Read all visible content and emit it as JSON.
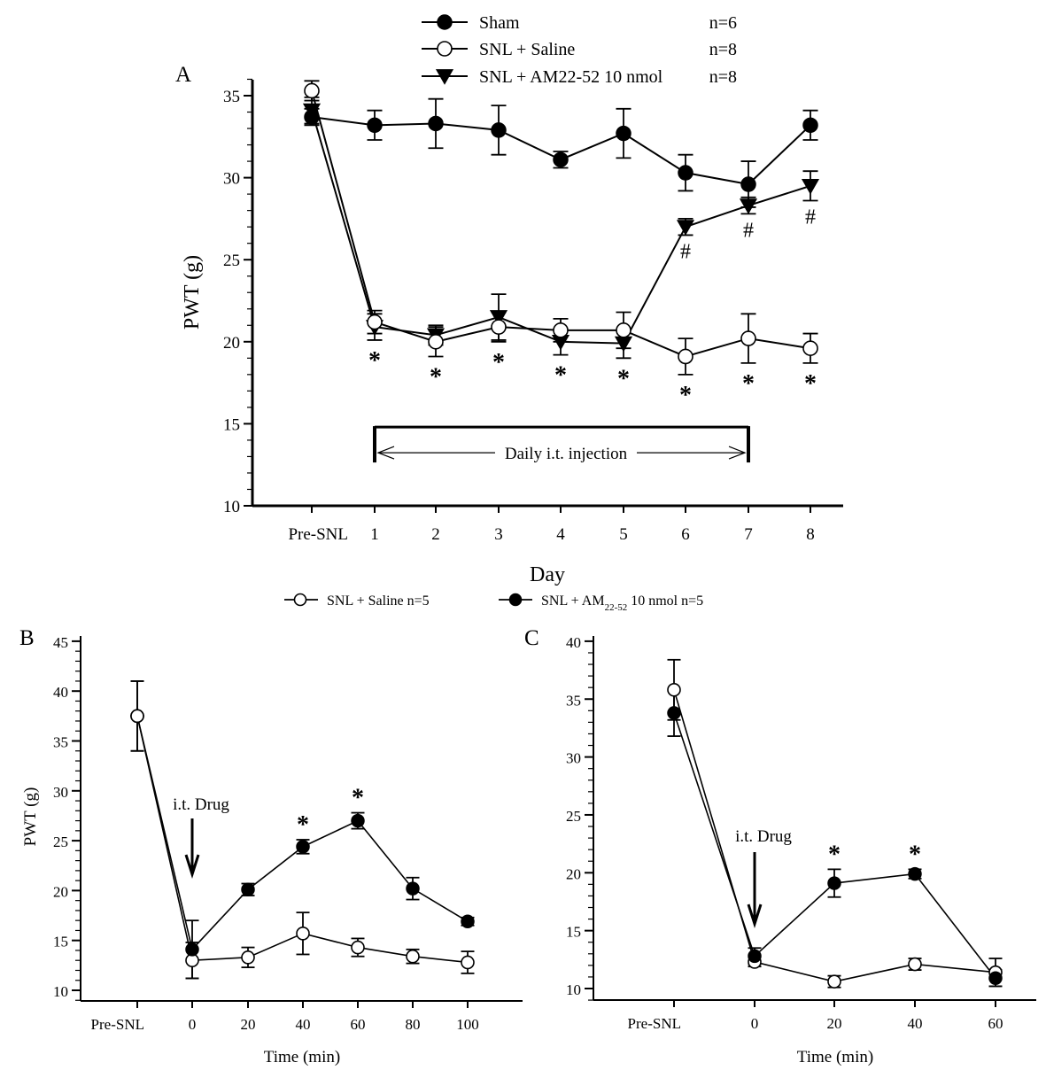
{
  "chart_data": [
    {
      "id": "A",
      "panel_label": "A",
      "type": "line",
      "xlabel": "Day",
      "ylabel": "PWT (g)",
      "ylim": [
        10,
        36
      ],
      "yticks": [
        10,
        15,
        20,
        25,
        30,
        35
      ],
      "categories": [
        "Pre-SNL",
        "1",
        "2",
        "3",
        "4",
        "5",
        "6",
        "7",
        "8"
      ],
      "legend_position": "top-center",
      "series": [
        {
          "name": "Sham",
          "n": "n=6",
          "marker": "filled-circle",
          "values": [
            33.7,
            33.2,
            33.3,
            32.9,
            31.1,
            32.7,
            30.3,
            29.6,
            33.2
          ],
          "errors": [
            0.5,
            0.9,
            1.5,
            1.5,
            0.5,
            1.5,
            1.1,
            1.4,
            0.9
          ]
        },
        {
          "name": "SNL + Saline",
          "n": "n=8",
          "marker": "open-circle",
          "values": [
            35.3,
            21.2,
            20.0,
            20.9,
            20.7,
            20.7,
            19.1,
            20.2,
            19.6
          ],
          "errors": [
            0.6,
            0.7,
            0.9,
            0.9,
            0.7,
            1.1,
            1.1,
            1.5,
            0.9
          ]
        },
        {
          "name": "SNL + AM22-52 10 nmol",
          "n": "n=8",
          "marker": "filled-triangle-down",
          "values": [
            34.1,
            20.9,
            20.4,
            21.5,
            20.0,
            19.9,
            27.0,
            28.3,
            29.5
          ],
          "errors": [
            0.8,
            0.8,
            0.6,
            1.4,
            0.8,
            0.9,
            0.5,
            0.5,
            0.9
          ]
        }
      ],
      "annotations": {
        "stars_at": [
          "1",
          "2",
          "3",
          "4",
          "5",
          "6",
          "7",
          "8"
        ],
        "star_label": "*",
        "hash_at": [
          "6",
          "7",
          "8"
        ],
        "hash_label": "#",
        "bracket": {
          "label": "Daily i.t. injection",
          "from": "1",
          "to": "7",
          "y": 14.8
        }
      }
    },
    {
      "id": "B",
      "panel_label": "B",
      "type": "line",
      "xlabel": "Time (min)",
      "ylabel": "PWT (g)",
      "ylim": [
        9,
        45
      ],
      "yticks": [
        10,
        15,
        20,
        25,
        30,
        35,
        40,
        45
      ],
      "categories": [
        "Pre-SNL",
        "0",
        "20",
        "40",
        "60",
        "80",
        "100"
      ],
      "series": [
        {
          "name": "SNL + Saline",
          "n": "n=5",
          "marker": "open-circle",
          "values": [
            37.5,
            13.0,
            13.3,
            15.7,
            14.3,
            13.4,
            12.8
          ],
          "errors": [
            3.5,
            1.8,
            1.0,
            2.1,
            0.9,
            0.7,
            1.1
          ]
        },
        {
          "name": "SNL + AM22-52 10 nmol",
          "n": "n=5",
          "marker": "filled-circle",
          "values": [
            37.5,
            14.1,
            20.1,
            24.4,
            27.0,
            20.2,
            16.9
          ],
          "errors": [
            3.5,
            2.9,
            0.6,
            0.7,
            0.8,
            1.1,
            0.4
          ]
        }
      ],
      "annotations": {
        "drug_label": "i.t. Drug",
        "drug_at": "0",
        "stars_at": [
          "40",
          "60"
        ],
        "star_label": "*"
      }
    },
    {
      "id": "C",
      "panel_label": "C",
      "type": "line",
      "xlabel": "Time (min)",
      "ylabel": "",
      "ylim": [
        9,
        40
      ],
      "yticks": [
        10,
        15,
        20,
        25,
        30,
        35,
        40
      ],
      "categories": [
        "Pre-SNL",
        "0",
        "20",
        "40",
        "60"
      ],
      "series": [
        {
          "name": "SNL + Saline",
          "n": "n=5",
          "marker": "open-circle",
          "values": [
            35.8,
            12.3,
            10.6,
            12.1,
            11.4
          ],
          "errors": [
            2.6,
            0.4,
            0.5,
            0.5,
            1.2
          ]
        },
        {
          "name": "SNL + AM22-52 10 nmol",
          "n": "n=5",
          "marker": "filled-circle",
          "values": [
            33.8,
            12.8,
            19.1,
            19.9,
            10.9
          ],
          "errors": [
            2.0,
            0.7,
            1.2,
            0.4,
            0.7
          ]
        }
      ],
      "annotations": {
        "drug_label": "i.t. Drug",
        "drug_at": "0",
        "stars_at": [
          "20",
          "40"
        ],
        "star_label": "*"
      }
    }
  ],
  "legend_bc": {
    "items": [
      {
        "marker": "open-circle",
        "name": "SNL + Saline",
        "n": "n=5"
      },
      {
        "marker": "filled-circle",
        "name_prefix": "SNL + AM",
        "name_sub": "22-52",
        "name_suffix": " 10 nmol",
        "n": "n=5"
      }
    ]
  }
}
